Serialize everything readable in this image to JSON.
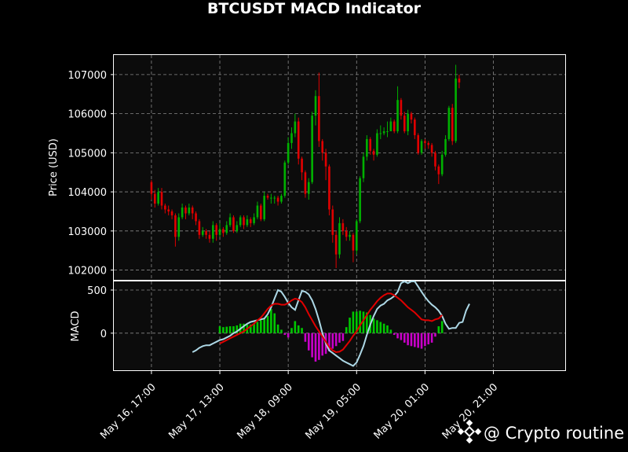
{
  "watermark": {
    "text": "@ Crypto routine",
    "icon": "binance-diamond-icon"
  },
  "colors": {
    "bg": "#000000",
    "panel": "#0c0c0c",
    "up": "#00b000",
    "down": "#e00000",
    "macd": "#add8e6",
    "signal": "#e00000",
    "hist_pos": "#00c800",
    "hist_neg": "#c800c8",
    "grid": "#888888"
  },
  "chart_data": [
    {
      "type": "candlestick",
      "title": "BTCUSDT MACD Indicator",
      "ylabel": "Price (USD)",
      "ylim": [
        101750,
        107500
      ],
      "yticks": [
        102000,
        103000,
        104000,
        105000,
        106000,
        107000
      ],
      "xlim": [
        "2025-05-16 06:00",
        "2025-05-21 18:00"
      ],
      "xticks": [
        "May 16, 17:00",
        "May 17, 13:00",
        "May 18, 09:00",
        "May 19, 05:00",
        "May 20, 01:00",
        "May 20, 21:00"
      ],
      "grid": true,
      "interval_hours": 1,
      "x_start": "2025-05-16 17:00",
      "candles": [
        [
          104250,
          103950,
          104300,
          103800
        ],
        [
          103950,
          103700,
          104050,
          103600
        ],
        [
          103700,
          104000,
          104100,
          103650
        ],
        [
          104000,
          103650,
          104100,
          103550
        ],
        [
          103650,
          103550,
          103700,
          103450
        ],
        [
          103550,
          103500,
          103650,
          103400
        ],
        [
          103500,
          103400,
          103550,
          103300
        ],
        [
          103400,
          102850,
          103450,
          102600
        ],
        [
          102850,
          103350,
          103450,
          102750
        ],
        [
          103350,
          103600,
          103700,
          103300
        ],
        [
          103600,
          103450,
          103650,
          103300
        ],
        [
          103450,
          103600,
          103700,
          103400
        ],
        [
          103600,
          103450,
          103650,
          103300
        ],
        [
          103450,
          103250,
          103500,
          103150
        ],
        [
          103250,
          102900,
          103300,
          102800
        ],
        [
          102900,
          103000,
          103100,
          102850
        ],
        [
          103000,
          102900,
          103050,
          102800
        ],
        [
          102900,
          102800,
          103000,
          102700
        ],
        [
          102800,
          103150,
          103250,
          102700
        ],
        [
          103150,
          102900,
          103200,
          102750
        ],
        [
          102900,
          103050,
          103200,
          102850
        ],
        [
          103050,
          102950,
          103100,
          102850
        ],
        [
          102950,
          103150,
          103250,
          102900
        ],
        [
          103150,
          103350,
          103450,
          103100
        ],
        [
          103350,
          103000,
          103400,
          102950
        ],
        [
          103000,
          103150,
          103250,
          102950
        ],
        [
          103150,
          103350,
          103400,
          103100
        ],
        [
          103350,
          103150,
          103400,
          103050
        ],
        [
          103150,
          103300,
          103400,
          103100
        ],
        [
          103300,
          103200,
          103350,
          103100
        ],
        [
          103200,
          103350,
          103450,
          103150
        ],
        [
          103350,
          103650,
          103750,
          103300
        ],
        [
          103650,
          103300,
          103700,
          103250
        ],
        [
          103300,
          103900,
          104000,
          103250
        ],
        [
          103900,
          103850,
          103950,
          103800
        ],
        [
          103850,
          103850,
          103950,
          103700
        ],
        [
          103850,
          103850,
          103900,
          103700
        ],
        [
          103850,
          103750,
          103900,
          103650
        ],
        [
          103750,
          103900,
          103950,
          103700
        ],
        [
          103900,
          104750,
          104800,
          103850
        ],
        [
          104750,
          105250,
          105400,
          104700
        ],
        [
          105250,
          105500,
          105650,
          105100
        ],
        [
          105500,
          105800,
          106000,
          105400
        ],
        [
          105800,
          104850,
          105900,
          104700
        ],
        [
          104850,
          104500,
          104900,
          104300
        ],
        [
          104500,
          103950,
          104550,
          103850
        ],
        [
          103950,
          104250,
          104350,
          103800
        ],
        [
          104250,
          105950,
          106050,
          104200
        ],
        [
          105950,
          106450,
          106600,
          105700
        ],
        [
          106450,
          105300,
          107050,
          105150
        ],
        [
          105300,
          105000,
          105350,
          104800
        ],
        [
          105000,
          104650,
          105100,
          104300
        ],
        [
          104650,
          103550,
          104700,
          103400
        ],
        [
          103550,
          102900,
          103650,
          102700
        ],
        [
          102900,
          102400,
          103000,
          102050
        ],
        [
          102400,
          103200,
          103350,
          102300
        ],
        [
          103200,
          103000,
          103300,
          102900
        ],
        [
          103000,
          102850,
          103100,
          102750
        ],
        [
          102850,
          102900,
          103000,
          102750
        ],
        [
          102900,
          102500,
          102950,
          102200
        ],
        [
          102500,
          103250,
          103300,
          102400
        ],
        [
          103250,
          104350,
          104400,
          103200
        ],
        [
          104350,
          104900,
          105000,
          104250
        ],
        [
          104900,
          105350,
          105450,
          104800
        ],
        [
          105350,
          105050,
          105400,
          104950
        ],
        [
          105050,
          104950,
          105100,
          104800
        ],
        [
          104950,
          105500,
          105600,
          104900
        ],
        [
          105500,
          105500,
          105700,
          105350
        ],
        [
          105500,
          105550,
          105650,
          105450
        ],
        [
          105550,
          105550,
          105800,
          105400
        ],
        [
          105550,
          105800,
          105900,
          105700
        ],
        [
          105800,
          105550,
          105850,
          105500
        ],
        [
          105550,
          106350,
          106700,
          105500
        ],
        [
          106350,
          105950,
          106400,
          105850
        ],
        [
          105950,
          105550,
          106050,
          105500
        ],
        [
          105550,
          106000,
          106100,
          105450
        ],
        [
          106000,
          105850,
          106050,
          105750
        ],
        [
          105850,
          105450,
          105900,
          105350
        ],
        [
          105450,
          105000,
          105500,
          104950
        ],
        [
          105000,
          105300,
          105350,
          104950
        ],
        [
          105300,
          105250,
          105350,
          105100
        ],
        [
          105250,
          105200,
          105300,
          105100
        ],
        [
          105200,
          105000,
          105250,
          104900
        ],
        [
          105000,
          104650,
          105050,
          104550
        ],
        [
          104650,
          104450,
          104700,
          104200
        ],
        [
          104450,
          104950,
          105050,
          104400
        ],
        [
          104950,
          105350,
          105450,
          104900
        ],
        [
          105350,
          106150,
          106200,
          105300
        ],
        [
          106150,
          105300,
          106250,
          105200
        ],
        [
          105300,
          106900,
          107250,
          105250
        ],
        [
          106900,
          106800,
          107000,
          106650
        ]
      ]
    },
    {
      "type": "macd",
      "ylabel": "MACD",
      "ylim": [
        -430,
        600
      ],
      "yticks": [
        0,
        500
      ],
      "grid": true,
      "macd_start_index": 12,
      "signal_start_index": 20,
      "macd": [
        -220,
        -200,
        -170,
        -150,
        -140,
        -140,
        -120,
        -100,
        -80,
        -70,
        -50,
        -30,
        0,
        20,
        50,
        80,
        110,
        130,
        140,
        150,
        160,
        170,
        220,
        300,
        400,
        500,
        480,
        420,
        350,
        300,
        270,
        380,
        490,
        480,
        450,
        380,
        280,
        150,
        0,
        -120,
        -200,
        -230,
        -260,
        -290,
        -320,
        -340,
        -360,
        -380,
        -340,
        -250,
        -150,
        -20,
        100,
        200,
        280,
        320,
        340,
        380,
        400,
        430,
        480,
        580,
        600,
        580,
        600,
        600,
        540,
        480,
        420,
        370,
        330,
        300,
        260,
        200,
        110,
        50,
        60,
        60,
        120,
        130,
        260,
        340
      ],
      "signal": [
        -120,
        -100,
        -80,
        -60,
        -40,
        -20,
        0,
        20,
        50,
        80,
        110,
        150,
        180,
        230,
        280,
        320,
        340,
        340,
        330,
        330,
        350,
        380,
        400,
        390,
        360,
        300,
        220,
        150,
        80,
        20,
        -40,
        -100,
        -160,
        -200,
        -220,
        -215,
        -190,
        -140,
        -90,
        -30,
        20,
        90,
        150,
        210,
        270,
        320,
        370,
        410,
        440,
        460,
        460,
        440,
        410,
        380,
        340,
        300,
        270,
        240,
        200,
        160,
        150,
        150,
        140,
        160,
        170,
        210
      ],
      "histogram": [
        80,
        70,
        75,
        80,
        80,
        90,
        110,
        110,
        100,
        100,
        110,
        130,
        150,
        170,
        200,
        280,
        230,
        100,
        40,
        -20,
        -50,
        60,
        140,
        90,
        60,
        -100,
        -200,
        -280,
        -330,
        -310,
        -260,
        -240,
        -210,
        -180,
        -150,
        -110,
        -90,
        70,
        180,
        250,
        250,
        260,
        250,
        240,
        210,
        170,
        150,
        130,
        110,
        90,
        40,
        -20,
        -60,
        -80,
        -110,
        -140,
        -150,
        -160,
        -170,
        -180,
        -150,
        -130,
        -110,
        -40,
        80,
        140
      ]
    }
  ]
}
